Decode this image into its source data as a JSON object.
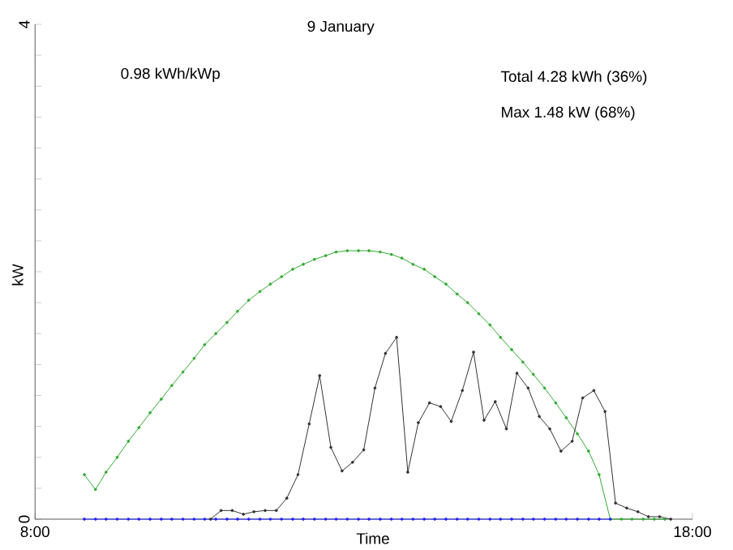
{
  "chart_data": {
    "type": "line",
    "title": "9 January",
    "xlabel": "Time",
    "ylabel": "kW",
    "annotations": [
      "0.98 kWh/kWp",
      "Total 4.28 kWh (36%)",
      "Max 1.48 kW (68%)"
    ],
    "xlim": [
      8,
      18
    ],
    "ylim": [
      0,
      4
    ],
    "xticks": [
      {
        "value": 8,
        "label": "8:00"
      },
      {
        "value": 18,
        "label": "18:00"
      }
    ],
    "yticks": [
      0,
      {
        "value": 0.25,
        "label": null
      },
      {
        "value": 0.5,
        "label": null
      },
      {
        "value": 0.75,
        "label": null
      },
      {
        "value": 1,
        "label": null
      },
      {
        "value": 1.25,
        "label": null
      },
      {
        "value": 1.5,
        "label": null
      },
      {
        "value": 1.75,
        "label": null
      },
      {
        "value": 2,
        "label": null
      },
      {
        "value": 2.25,
        "label": null
      },
      {
        "value": 2.5,
        "label": null
      },
      {
        "value": 2.75,
        "label": null
      },
      {
        "value": 3,
        "label": null
      },
      {
        "value": 3.25,
        "label": null
      },
      {
        "value": 3.5,
        "label": null
      },
      {
        "value": 3.75,
        "label": null
      },
      4
    ],
    "marker": "circle",
    "line_style": "solid",
    "series": [
      {
        "color": "#33aa33",
        "x": [
          8.75,
          8.92,
          9.08,
          9.25,
          9.42,
          9.58,
          9.75,
          9.92,
          10.08,
          10.25,
          10.42,
          10.58,
          10.75,
          10.92,
          11.08,
          11.25,
          11.42,
          11.58,
          11.75,
          11.92,
          12.08,
          12.25,
          12.42,
          12.58,
          12.75,
          12.92,
          13.08,
          13.25,
          13.42,
          13.58,
          13.75,
          13.92,
          14.08,
          14.25,
          14.42,
          14.58,
          14.75,
          14.92,
          15.08,
          15.25,
          15.42,
          15.58,
          15.75,
          15.92,
          16.08,
          16.25,
          16.42,
          16.58,
          16.75,
          16.92,
          17.08,
          17.25,
          17.42,
          17.58
        ],
        "values": [
          0.36,
          0.24,
          0.38,
          0.5,
          0.63,
          0.74,
          0.86,
          0.97,
          1.08,
          1.19,
          1.3,
          1.41,
          1.5,
          1.59,
          1.68,
          1.77,
          1.84,
          1.9,
          1.96,
          2.02,
          2.06,
          2.1,
          2.13,
          2.16,
          2.17,
          2.17,
          2.17,
          2.16,
          2.14,
          2.11,
          2.06,
          2.02,
          1.96,
          1.9,
          1.82,
          1.75,
          1.66,
          1.57,
          1.47,
          1.37,
          1.27,
          1.17,
          1.06,
          0.94,
          0.82,
          0.69,
          0.55,
          0.36,
          0,
          0,
          0,
          0,
          0,
          0
        ]
      },
      {
        "color": "#2222ff",
        "x": [
          8.75,
          8.92,
          9.08,
          9.25,
          9.42,
          9.58,
          9.75,
          9.92,
          10.08,
          10.25,
          10.42,
          10.58,
          10.75,
          10.92,
          11.08,
          11.25,
          11.42,
          11.58,
          11.75,
          11.92,
          12.08,
          12.25,
          12.42,
          12.58,
          12.75,
          12.92,
          13.08,
          13.25,
          13.42,
          13.58,
          13.75,
          13.92,
          14.08,
          14.25,
          14.42,
          14.58,
          14.75,
          14.92,
          15.08,
          15.25,
          15.42,
          15.58,
          15.75,
          15.92,
          16.08,
          16.25,
          16.42,
          16.58,
          16.75
        ],
        "values": [
          0,
          0,
          0,
          0,
          0,
          0,
          0,
          0,
          0,
          0,
          0,
          0,
          0,
          0,
          0,
          0,
          0,
          0,
          0,
          0,
          0,
          0,
          0,
          0,
          0,
          0,
          0,
          0,
          0,
          0,
          0,
          0,
          0,
          0,
          0,
          0,
          0,
          0,
          0,
          0,
          0,
          0,
          0,
          0,
          0,
          0,
          0,
          0,
          0
        ]
      },
      {
        "color": "#333333",
        "x": [
          10.67,
          10.83,
          11.0,
          11.17,
          11.33,
          11.5,
          11.67,
          11.83,
          12.0,
          12.17,
          12.33,
          12.5,
          12.67,
          12.83,
          13.0,
          13.17,
          13.33,
          13.5,
          13.67,
          13.83,
          14.0,
          14.17,
          14.33,
          14.5,
          14.67,
          14.83,
          15.0,
          15.17,
          15.33,
          15.5,
          15.67,
          15.83,
          16.0,
          16.17,
          16.33,
          16.5,
          16.67,
          16.83,
          17.0,
          17.17,
          17.33,
          17.5,
          17.67
        ],
        "values": [
          0,
          0.07,
          0.07,
          0.04,
          0.06,
          0.07,
          0.07,
          0.17,
          0.36,
          0.77,
          1.16,
          0.58,
          0.39,
          0.46,
          0.56,
          1.06,
          1.34,
          1.47,
          0.38,
          0.78,
          0.94,
          0.91,
          0.79,
          1.04,
          1.35,
          0.8,
          0.95,
          0.73,
          1.18,
          1.06,
          0.83,
          0.73,
          0.55,
          0.63,
          0.98,
          1.04,
          0.87,
          0.13,
          0.09,
          0.06,
          0.02,
          0.02,
          0
        ]
      }
    ]
  }
}
